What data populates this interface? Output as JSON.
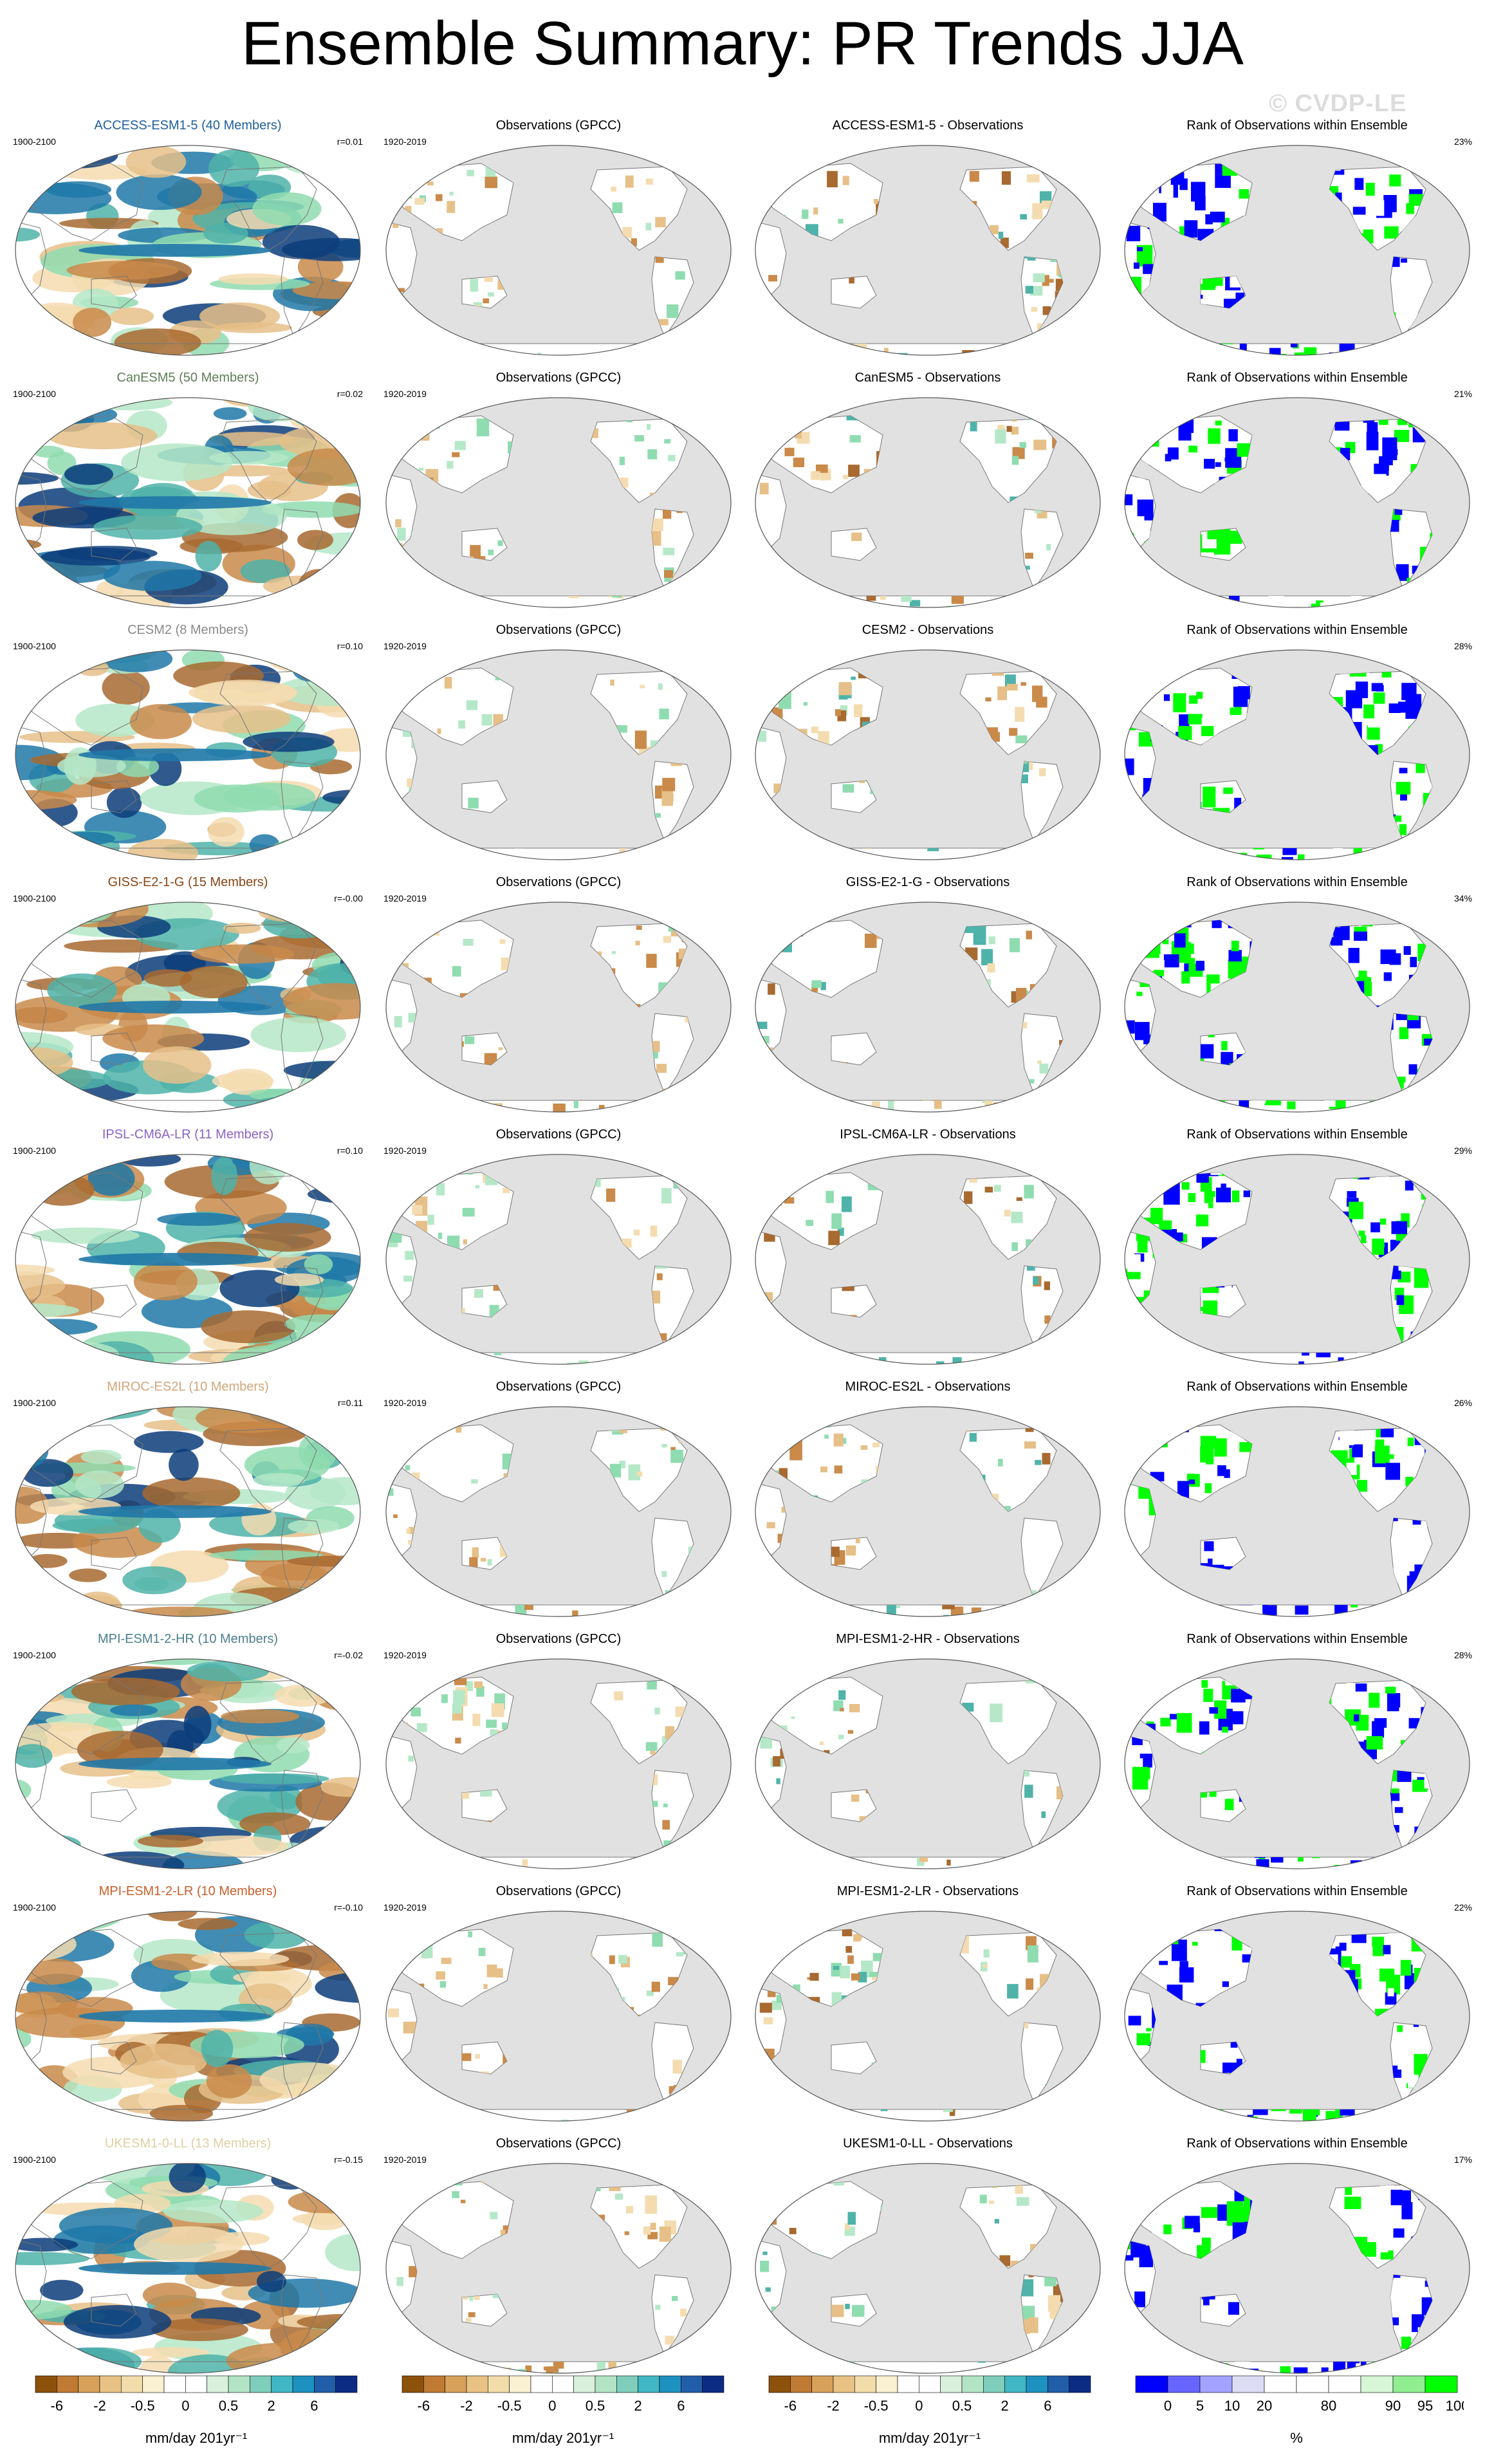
{
  "title": "Ensemble Summary: PR Trends JJA",
  "watermark": "© CVDP-LE",
  "rows": [
    {
      "model_label": "ACCESS-ESM1-5 (40 Members)",
      "model_color": "#1f5f9e",
      "model_period": "1900-2100",
      "pattern_corr": "r=0.01",
      "obs_title": "Observations (GPCC)",
      "obs_period": "1920-2019",
      "diff_title": "ACCESS-ESM1-5 - Observations",
      "rank_title": "Rank of Observations within Ensemble",
      "rank_pct": "23%"
    },
    {
      "model_label": "CanESM5 (50 Members)",
      "model_color": "#5f7d5a",
      "model_period": "1900-2100",
      "pattern_corr": "r=0.02",
      "obs_title": "Observations (GPCC)",
      "obs_period": "1920-2019",
      "diff_title": "CanESM5 - Observations",
      "rank_title": "Rank of Observations within Ensemble",
      "rank_pct": "21%"
    },
    {
      "model_label": "CESM2 (8 Members)",
      "model_color": "#8a8a8a",
      "model_period": "1900-2100",
      "pattern_corr": "r=0.10",
      "obs_title": "Observations (GPCC)",
      "obs_period": "1920-2019",
      "diff_title": "CESM2 - Observations",
      "rank_title": "Rank of Observations within Ensemble",
      "rank_pct": "28%"
    },
    {
      "model_label": "GISS-E2-1-G (15 Members)",
      "model_color": "#8b4513",
      "model_period": "1900-2100",
      "pattern_corr": "r=-0.00",
      "obs_title": "Observations (GPCC)",
      "obs_period": "1920-2019",
      "diff_title": "GISS-E2-1-G - Observations",
      "rank_title": "Rank of Observations within Ensemble",
      "rank_pct": "34%"
    },
    {
      "model_label": "IPSL-CM6A-LR (11 Members)",
      "model_color": "#8a63c7",
      "model_period": "1900-2100",
      "pattern_corr": "r=0.10",
      "obs_title": "Observations (GPCC)",
      "obs_period": "1920-2019",
      "diff_title": "IPSL-CM6A-LR - Observations",
      "rank_title": "Rank of Observations within Ensemble",
      "rank_pct": "29%"
    },
    {
      "model_label": "MIROC-ES2L (10 Members)",
      "model_color": "#d2a679",
      "model_period": "1900-2100",
      "pattern_corr": "r=0.11",
      "obs_title": "Observations (GPCC)",
      "obs_period": "1920-2019",
      "diff_title": "MIROC-ES2L - Observations",
      "rank_title": "Rank of Observations within Ensemble",
      "rank_pct": "26%"
    },
    {
      "model_label": "MPI-ESM1-2-HR (10 Members)",
      "model_color": "#4a7f8c",
      "model_period": "1900-2100",
      "pattern_corr": "r=-0.02",
      "obs_title": "Observations (GPCC)",
      "obs_period": "1920-2019",
      "diff_title": "MPI-ESM1-2-HR - Observations",
      "rank_title": "Rank of Observations within Ensemble",
      "rank_pct": "28%"
    },
    {
      "model_label": "MPI-ESM1-2-LR (10 Members)",
      "model_color": "#c8602a",
      "model_period": "1900-2100",
      "pattern_corr": "r=-0.10",
      "obs_title": "Observations (GPCC)",
      "obs_period": "1920-2019",
      "diff_title": "MPI-ESM1-2-LR - Observations",
      "rank_title": "Rank of Observations within Ensemble",
      "rank_pct": "22%"
    },
    {
      "model_label": "UKESM1-0-LL (13 Members)",
      "model_color": "#e0cfa0",
      "model_period": "1900-2100",
      "pattern_corr": "r=-0.15",
      "obs_title": "Observations (GPCC)",
      "obs_period": "1920-2019",
      "diff_title": "UKESM1-0-LL - Observations",
      "rank_title": "Rank of Observations within Ensemble",
      "rank_pct": "17%"
    }
  ],
  "colorbars": {
    "trend": {
      "colors": [
        "#8c510a",
        "#bf7a33",
        "#d8a15b",
        "#e7c284",
        "#f2dcaa",
        "#faf0d2",
        "#ffffff",
        "#ffffff",
        "#d9f0dc",
        "#b2e3c4",
        "#7fcdbb",
        "#41b6c4",
        "#1d91c0",
        "#225ea8",
        "#0c2c84"
      ],
      "labels": [
        {
          "text": "-6",
          "pos": 1
        },
        {
          "text": "-2",
          "pos": 3
        },
        {
          "text": "-0.5",
          "pos": 5
        },
        {
          "text": "0",
          "pos": 7
        },
        {
          "text": "0.5",
          "pos": 9
        },
        {
          "text": "2",
          "pos": 11
        },
        {
          "text": "6",
          "pos": 13
        }
      ],
      "unit": "mm/day 201yr⁻¹"
    },
    "obs": {
      "unit": "mm/day 201yr⁻¹"
    },
    "diff": {
      "unit": "mm/day 201yr⁻¹"
    },
    "rank": {
      "colors": [
        "#0000ff",
        "#6666ff",
        "#a3a3ff",
        "#dcdcf5",
        "#ffffff",
        "#ffffff",
        "#ffffff",
        "#d7f5d7",
        "#90ee90",
        "#00ff00"
      ],
      "labels": [
        {
          "text": "0",
          "pos": 1
        },
        {
          "text": "5",
          "pos": 2
        },
        {
          "text": "10",
          "pos": 3
        },
        {
          "text": "20",
          "pos": 4
        },
        {
          "text": "80",
          "pos": 6
        },
        {
          "text": "90",
          "pos": 8
        },
        {
          "text": "95",
          "pos": 9
        },
        {
          "text": "100",
          "pos": 10
        }
      ],
      "unit": "%"
    }
  }
}
